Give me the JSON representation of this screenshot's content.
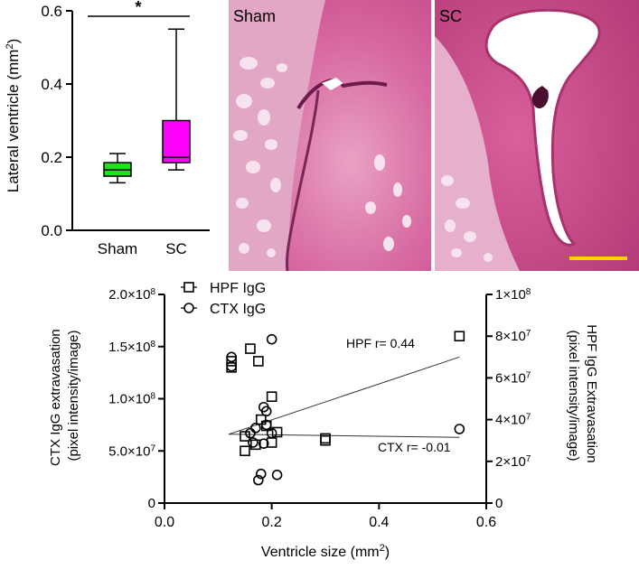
{
  "chart_data": [
    {
      "type": "box",
      "ylabel": "Lateral ventricle (mm²)",
      "ylabel_text": "Lateral ventricle (mm",
      "ylabel_sup": "2",
      "ylabel_tail": ")",
      "ylim": [
        0,
        0.6
      ],
      "yticks": [
        "0.0",
        "0.2",
        "0.4",
        "0.6"
      ],
      "categories": [
        "Sham",
        "SC"
      ],
      "boxes": [
        {
          "name": "Sham",
          "min": 0.13,
          "q1": 0.148,
          "median": 0.165,
          "q3": 0.185,
          "max": 0.21,
          "color": "#22e01e"
        },
        {
          "name": "SC",
          "min": 0.165,
          "q1": 0.185,
          "median": 0.2,
          "q3": 0.3,
          "max": 0.55,
          "color": "#ff00ff"
        }
      ],
      "significance": "*"
    },
    {
      "type": "scatter",
      "xlabel": "Ventricle size (mm²)",
      "xlabel_text": "Ventricle size (mm",
      "xlabel_sup": "2",
      "xlabel_tail": ")",
      "ylabel_left": [
        "CTX IgG extravasation",
        "(pixel intensity/image)"
      ],
      "ylabel_right": [
        "HPF IgG Extravasation",
        "(pixel intensity/image)"
      ],
      "xlim": [
        0,
        0.6
      ],
      "xticks": [
        "0.0",
        "0.2",
        "0.4",
        "0.6"
      ],
      "ylim_left": [
        0,
        200000000
      ],
      "yticks_left": [
        {
          "m": "0",
          "e": ""
        },
        {
          "m": "5.0×10",
          "e": "7"
        },
        {
          "m": "1.0×10",
          "e": "8"
        },
        {
          "m": "1.5×10",
          "e": "8"
        },
        {
          "m": "2.0×10",
          "e": "8"
        }
      ],
      "ylim_right": [
        0,
        100000000
      ],
      "yticks_right": [
        {
          "m": "0",
          "e": ""
        },
        {
          "m": "2×10",
          "e": "7"
        },
        {
          "m": "4×10",
          "e": "7"
        },
        {
          "m": "6×10",
          "e": "7"
        },
        {
          "m": "8×10",
          "e": "7"
        },
        {
          "m": "1×10",
          "e": "8"
        }
      ],
      "legend": [
        {
          "label": "HPF IgG",
          "marker": "square"
        },
        {
          "label": "CTX IgG",
          "marker": "circle"
        }
      ],
      "series": [
        {
          "name": "HPF IgG",
          "marker": "square",
          "axis": "right",
          "x": [
            0.125,
            0.125,
            0.16,
            0.175,
            0.18,
            0.15,
            0.2,
            0.2,
            0.21,
            0.19,
            0.17,
            0.15,
            0.3,
            0.3,
            0.55
          ],
          "y": [
            68000000,
            65000000,
            74000000,
            68000000,
            40000000,
            25000000,
            51000000,
            29000000,
            34000000,
            37000000,
            28000000,
            32000000,
            31000000,
            30000000,
            80000000
          ]
        },
        {
          "name": "CTX IgG",
          "marker": "circle",
          "axis": "left",
          "x": [
            0.125,
            0.125,
            0.2,
            0.185,
            0.19,
            0.17,
            0.19,
            0.2,
            0.16,
            0.165,
            0.185,
            0.18,
            0.21,
            0.175,
            0.55
          ],
          "y": [
            140000000,
            131000000,
            157000000,
            92000000,
            88000000,
            72000000,
            75000000,
            67000000,
            67000000,
            58000000,
            57000000,
            28000000,
            27000000,
            22000000,
            71000000
          ]
        }
      ],
      "fits": [
        {
          "name": "HPF",
          "label": "HPF r= 0.44",
          "axis": "right",
          "x": [
            0.12,
            0.55
          ],
          "y": [
            33000000,
            70000000
          ]
        },
        {
          "name": "CTX",
          "label": "CTX r= -0.01",
          "axis": "left",
          "x": [
            0.12,
            0.55
          ],
          "y": [
            66000000,
            63000000
          ]
        }
      ]
    }
  ],
  "images": [
    {
      "label": "Sham"
    },
    {
      "label": "SC"
    }
  ]
}
